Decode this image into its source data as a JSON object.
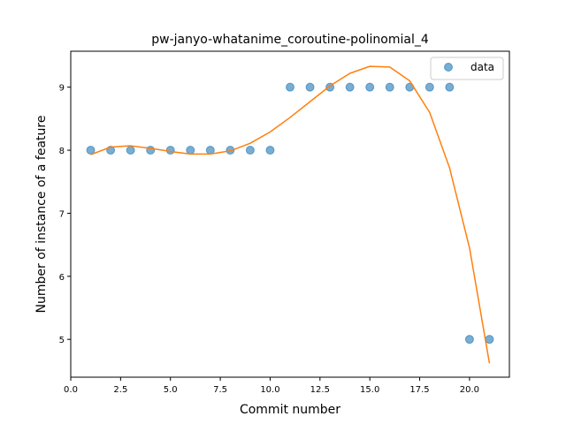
{
  "chart_data": {
    "type": "scatter",
    "title": "pw-janyo-whatanime_coroutine-polinomial_4",
    "xlabel": "Commit number",
    "ylabel": "Number of instance of a feature",
    "xlim": [
      0.0,
      22.0
    ],
    "ylim": [
      4.4,
      9.57
    ],
    "xticks": [
      0.0,
      2.5,
      5.0,
      7.5,
      10.0,
      12.5,
      15.0,
      17.5,
      20.0
    ],
    "xtick_labels": [
      "0.0",
      "2.5",
      "5.0",
      "7.5",
      "10.0",
      "12.5",
      "15.0",
      "17.5",
      "20.0"
    ],
    "yticks": [
      5,
      6,
      7,
      8,
      9
    ],
    "ytick_labels": [
      "5",
      "6",
      "7",
      "8",
      "9"
    ],
    "grid": false,
    "legend_position": "top-right",
    "series": [
      {
        "name": "data",
        "kind": "points",
        "color": "#1f77b4",
        "x": [
          1,
          2,
          3,
          4,
          5,
          6,
          7,
          8,
          9,
          10,
          11,
          12,
          13,
          14,
          15,
          16,
          17,
          18,
          19,
          20,
          21
        ],
        "y": [
          8,
          8,
          8,
          8,
          8,
          8,
          8,
          8,
          8,
          8,
          9,
          9,
          9,
          9,
          9,
          9,
          9,
          9,
          9,
          5,
          5
        ]
      },
      {
        "kind": "line",
        "color": "#ff7f0e",
        "x": [
          1,
          2,
          3,
          4,
          5,
          6,
          7,
          8,
          9,
          10,
          11,
          12,
          13,
          14,
          15,
          16,
          17,
          18,
          19,
          20,
          21
        ],
        "y": [
          7.93,
          8.05,
          8.07,
          8.03,
          7.98,
          7.94,
          7.94,
          7.99,
          8.11,
          8.29,
          8.52,
          8.77,
          9.02,
          9.22,
          9.33,
          9.32,
          9.1,
          8.6,
          7.72,
          6.45,
          4.62
        ]
      }
    ]
  }
}
